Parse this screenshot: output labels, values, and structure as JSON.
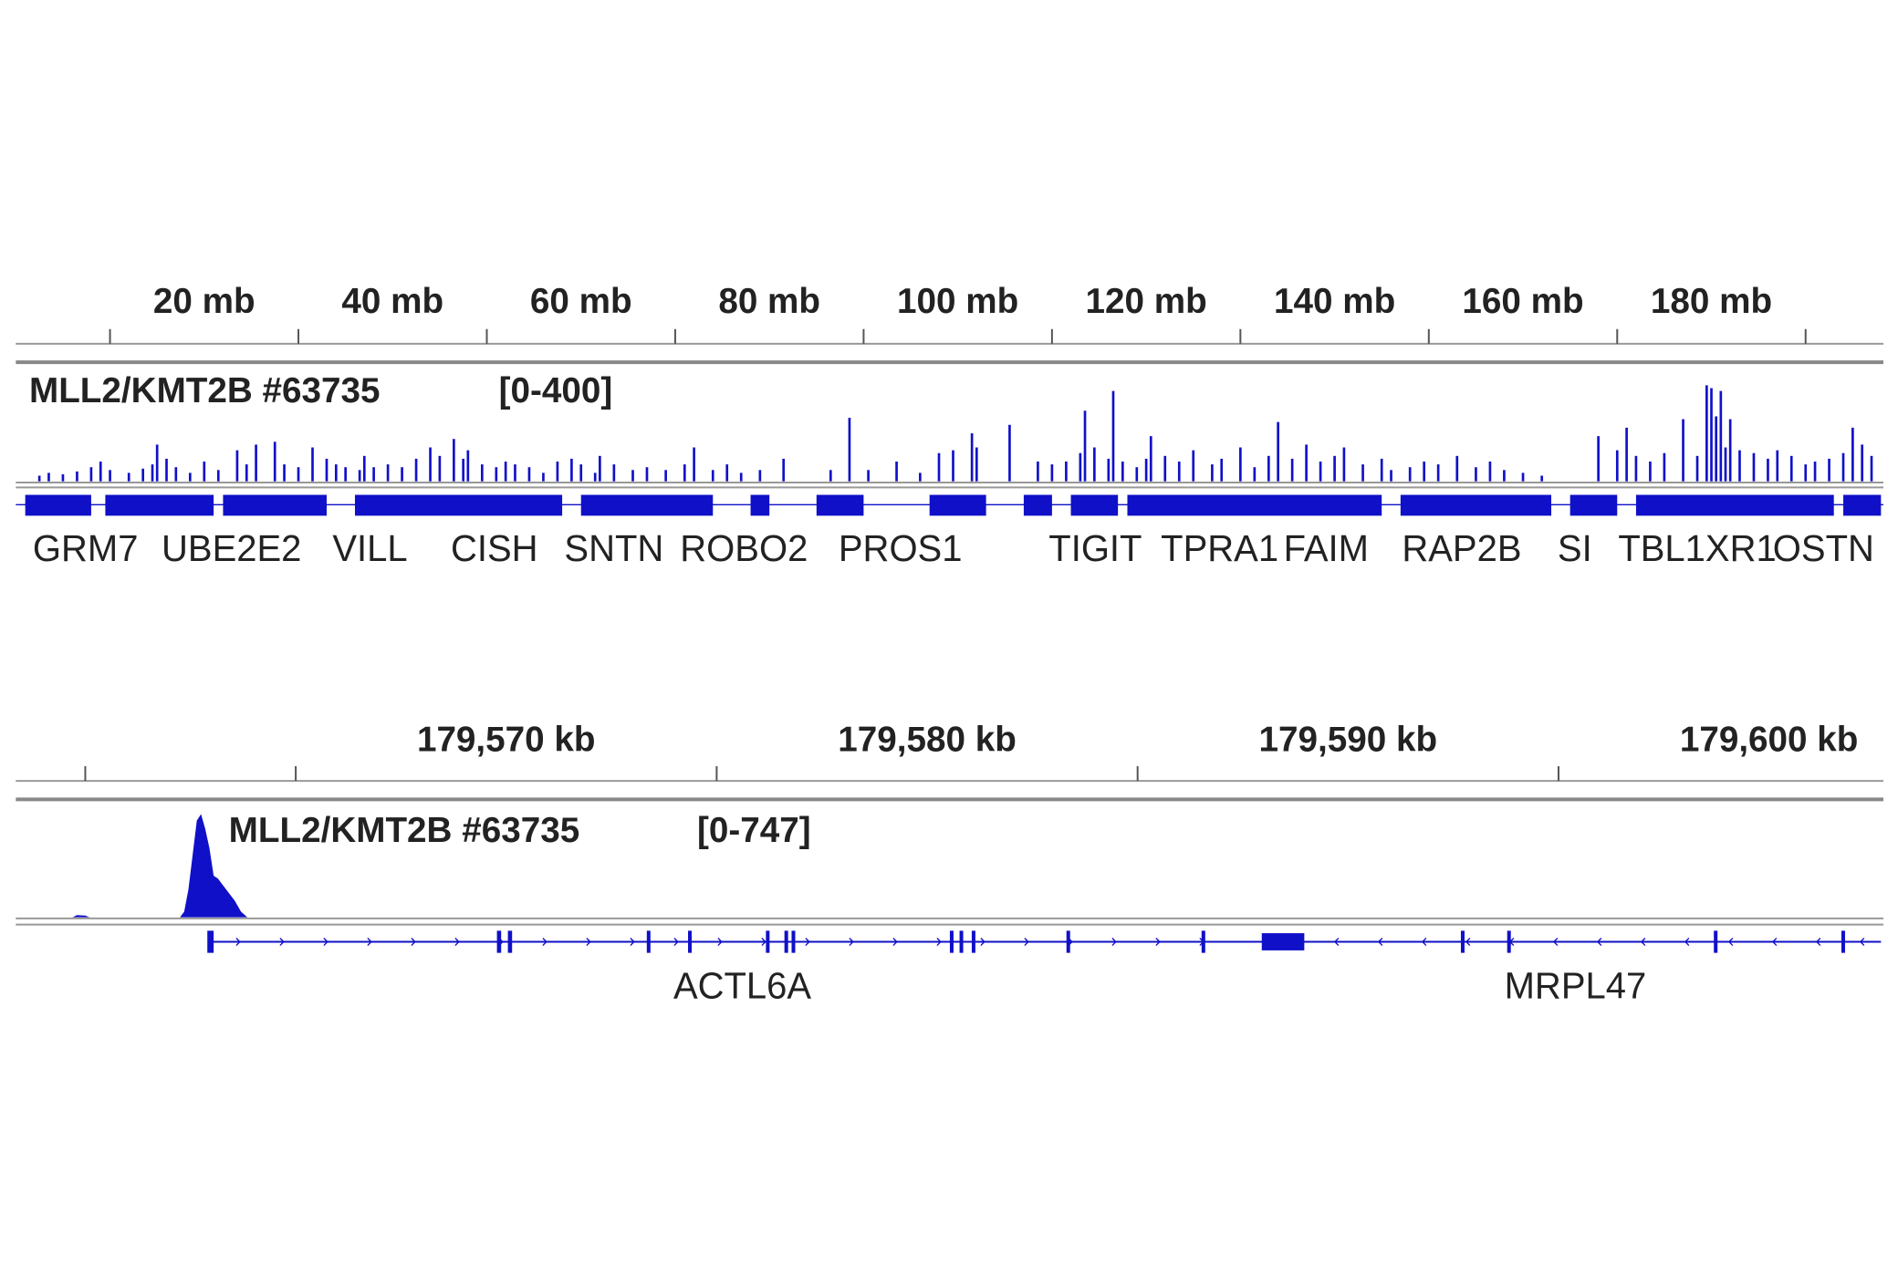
{
  "panels": [
    {
      "xlim": [
        0,
        198
      ],
      "xticks": [
        10,
        30,
        50,
        70,
        90,
        110,
        130,
        150,
        170,
        190
      ],
      "xtick_labels": [
        {
          "value": 20,
          "label": "20 mb"
        },
        {
          "value": 40,
          "label": "40 mb"
        },
        {
          "value": 60,
          "label": "60 mb"
        },
        {
          "value": 80,
          "label": "80 mb"
        },
        {
          "value": 100,
          "label": "100 mb"
        },
        {
          "value": 120,
          "label": "120 mb"
        },
        {
          "value": 140,
          "label": "140 mb"
        },
        {
          "value": 160,
          "label": "160 mb"
        },
        {
          "value": 180,
          "label": "180 mb"
        }
      ],
      "track": {
        "name": "MLL2/KMT2B #63735",
        "range_label": "[0-400]",
        "ylim": [
          0,
          400
        ],
        "color": "#1010c8",
        "signal": {
          "x": [
            2.5,
            3.5,
            5,
            6.5,
            8,
            9,
            10,
            12,
            13.5,
            14.5,
            15,
            16,
            17,
            18.5,
            20,
            21.5,
            23.5,
            24.5,
            25.5,
            27.5,
            28.5,
            30,
            31.5,
            33,
            34,
            35,
            36.5,
            37,
            38,
            39.5,
            41,
            42.5,
            44,
            45,
            46.5,
            47.5,
            48,
            49.5,
            51,
            52,
            53,
            54.5,
            56,
            57.5,
            59,
            60,
            61.5,
            62,
            63.5,
            65.5,
            67,
            69,
            71,
            72,
            74,
            75.5,
            77,
            79,
            81.5,
            86.5,
            88.5,
            90.5,
            93.5,
            96,
            98,
            99.5,
            101.5,
            102,
            105.5,
            108.5,
            110,
            111.5,
            113,
            113.5,
            114.5,
            116,
            116.5,
            117.5,
            119,
            120,
            120.5,
            122,
            123.5,
            125,
            127,
            128,
            130,
            131.5,
            133,
            134,
            135.5,
            137,
            138.5,
            140,
            141,
            143,
            145,
            146,
            148,
            149.5,
            151,
            153,
            155,
            156.5,
            158,
            160,
            162,
            168,
            170,
            171,
            172,
            173.5,
            175,
            177,
            178.5,
            179.5,
            180,
            180.5,
            181,
            181.5,
            182,
            183,
            184.5,
            186,
            187,
            188.5,
            190,
            191,
            192.5,
            194,
            195,
            196,
            197
          ],
          "values": [
            20,
            30,
            25,
            35,
            50,
            70,
            40,
            30,
            45,
            60,
            130,
            80,
            50,
            30,
            70,
            40,
            110,
            60,
            130,
            140,
            60,
            50,
            120,
            80,
            60,
            50,
            40,
            90,
            50,
            60,
            50,
            80,
            120,
            90,
            150,
            80,
            110,
            60,
            50,
            70,
            60,
            50,
            30,
            70,
            80,
            60,
            30,
            90,
            60,
            40,
            50,
            40,
            60,
            120,
            40,
            60,
            30,
            40,
            80,
            40,
            225,
            40,
            70,
            30,
            100,
            110,
            170,
            120,
            200,
            70,
            60,
            70,
            100,
            250,
            120,
            80,
            320,
            70,
            50,
            80,
            160,
            90,
            70,
            110,
            60,
            80,
            120,
            50,
            90,
            210,
            80,
            130,
            70,
            90,
            120,
            60,
            80,
            40,
            50,
            70,
            60,
            90,
            50,
            70,
            40,
            30,
            20,
            160,
            110,
            190,
            90,
            70,
            100,
            220,
            90,
            340,
            330,
            230,
            320,
            120,
            220,
            110,
            100,
            80,
            110,
            90,
            60,
            70,
            80,
            100,
            190,
            130,
            90
          ]
        }
      },
      "gene_blocks": [
        [
          1,
          8
        ],
        [
          9.5,
          21
        ],
        [
          22,
          33
        ],
        [
          36,
          58
        ],
        [
          60,
          74
        ],
        [
          78,
          80
        ],
        [
          85,
          90
        ],
        [
          97,
          103
        ],
        [
          107,
          110
        ],
        [
          112,
          117
        ],
        [
          118,
          145
        ],
        [
          147,
          163
        ],
        [
          165,
          170
        ],
        [
          172,
          193
        ],
        [
          194,
          198
        ]
      ],
      "genes": [
        {
          "name": "GRM7",
          "position": 7.4
        },
        {
          "name": "UBE2E2",
          "position": 22.9
        },
        {
          "name": "VILL",
          "position": 37.6
        },
        {
          "name": "CISH",
          "position": 50.8
        },
        {
          "name": "SNTN",
          "position": 63.5
        },
        {
          "name": "ROBO2",
          "position": 77.3
        },
        {
          "name": "PROS1",
          "position": 93.9
        },
        {
          "name": "TIGIT",
          "position": 114.6
        },
        {
          "name": "TPRA1",
          "position": 127.8
        },
        {
          "name": "FAIM",
          "position": 139.1
        },
        {
          "name": "RAP2B",
          "position": 153.5
        },
        {
          "name": "SI",
          "position": 165.5
        },
        {
          "name": "TBL1XR1",
          "position": 178.5
        },
        {
          "name": "OSTN",
          "position": 191.9
        }
      ]
    },
    {
      "xlim": [
        179558.35,
        179602.66
      ],
      "xticks": [
        179560,
        179565,
        179575,
        179585,
        179595
      ],
      "xtick_labels": [
        {
          "value": 179570,
          "label": "179,570 kb"
        },
        {
          "value": 179580,
          "label": "179,580 kb"
        },
        {
          "value": 179590,
          "label": "179,590 kb"
        },
        {
          "value": 179600,
          "label": "179,600 kb"
        }
      ],
      "track": {
        "name": "MLL2/KMT2B #63735",
        "range_label": "[0-747]",
        "ylim": [
          0,
          747
        ],
        "color": "#1010c8",
        "signal": {
          "x": [
            179559.7,
            179559.8,
            179560.0,
            179560.1,
            179562.25,
            179562.35,
            179562.45,
            179562.55,
            179562.65,
            179562.75,
            179562.85,
            179562.95,
            179563.05,
            179563.15,
            179563.25,
            179563.4,
            179563.55,
            179563.7,
            179563.85
          ],
          "values": [
            0,
            15,
            12,
            0,
            0,
            40,
            200,
            450,
            700,
            747,
            640,
            500,
            300,
            280,
            240,
            180,
            120,
            40,
            0
          ]
        }
      },
      "transcript": [
        179562.95,
        179602.66
      ],
      "exons": [
        [
          179562.9,
          179563.05
        ],
        [
          179569.78,
          179569.88
        ],
        [
          179570.04,
          179570.14
        ],
        [
          179573.34,
          179573.42
        ],
        [
          179574.32,
          179574.4
        ],
        [
          179576.17,
          179576.25
        ],
        [
          179576.61,
          179576.69
        ],
        [
          179576.78,
          179576.86
        ],
        [
          179580.54,
          179580.62
        ],
        [
          179580.77,
          179580.85
        ],
        [
          179581.06,
          179581.14
        ],
        [
          179583.31,
          179583.39
        ],
        [
          179586.52,
          179586.6
        ],
        [
          179587.95,
          179588.96
        ],
        [
          179592.68,
          179592.76
        ],
        [
          179593.78,
          179593.86
        ],
        [
          179598.69,
          179598.77
        ],
        [
          179601.72,
          179601.8
        ]
      ],
      "genes": [
        {
          "name": "ACTL6A",
          "position": 179575.61
        },
        {
          "name": "MRPL47",
          "position": 179595.4
        }
      ]
    }
  ]
}
